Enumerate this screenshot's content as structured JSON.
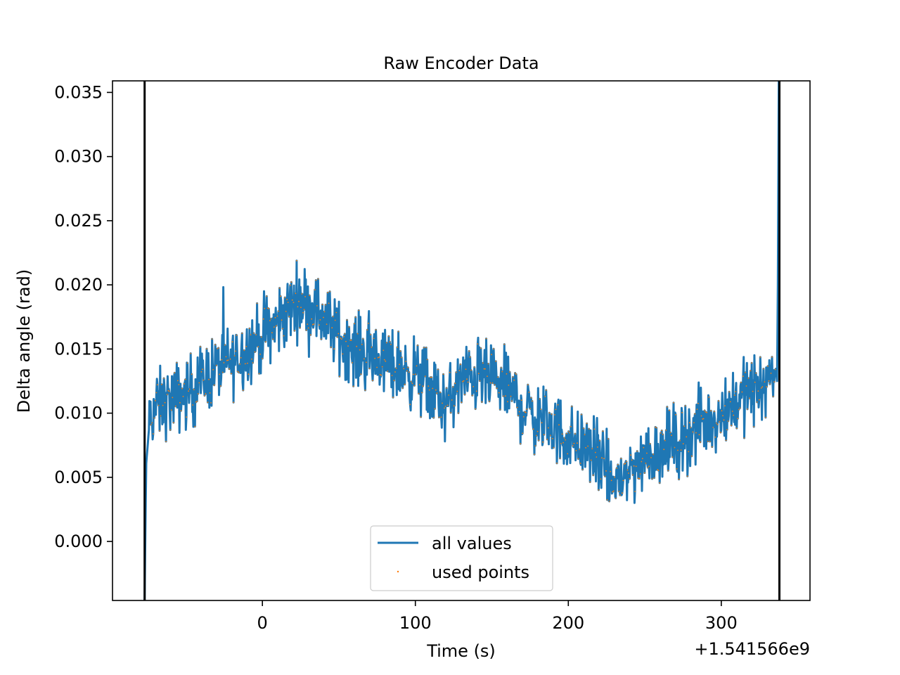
{
  "chart_data": {
    "type": "line",
    "title": "Raw Encoder Data",
    "xlabel": "Time (s)",
    "ylabel": "Delta angle (rad)",
    "x_offset_label": "+1.541566e9",
    "xlim": [
      -98,
      358
    ],
    "ylim": [
      -0.0046,
      0.0359
    ],
    "xticks": [
      0,
      100,
      200,
      300
    ],
    "xtick_labels": [
      "0",
      "100",
      "200",
      "300"
    ],
    "yticks": [
      0.0,
      0.005,
      0.01,
      0.015,
      0.02,
      0.025,
      0.03,
      0.035
    ],
    "ytick_labels": [
      "0.000",
      "0.005",
      "0.010",
      "0.015",
      "0.020",
      "0.025",
      "0.030",
      "0.035"
    ],
    "vertical_lines_x": [
      -77,
      338
    ],
    "legend_position": "lower center",
    "colors": {
      "all_values": "#1f77b4",
      "used_points": "#ff7f0e",
      "vlines": "#000000"
    },
    "series": [
      {
        "name": "all values",
        "style": "line",
        "x": [
          -77,
          -76,
          -74,
          -70,
          -60,
          -50,
          -40,
          -30,
          -20,
          -10,
          0,
          10,
          20,
          25,
          30,
          40,
          50,
          60,
          70,
          80,
          90,
          100,
          110,
          120,
          130,
          140,
          150,
          160,
          170,
          180,
          190,
          200,
          210,
          220,
          228,
          235,
          245,
          255,
          265,
          275,
          285,
          295,
          305,
          315,
          325,
          336,
          337,
          338
        ],
        "y": [
          -0.0046,
          0.006,
          0.009,
          0.0105,
          0.011,
          0.0115,
          0.0125,
          0.0135,
          0.014,
          0.015,
          0.016,
          0.017,
          0.0185,
          0.019,
          0.0185,
          0.0175,
          0.016,
          0.015,
          0.0145,
          0.014,
          0.0135,
          0.013,
          0.012,
          0.0105,
          0.0125,
          0.013,
          0.0125,
          0.012,
          0.0105,
          0.0095,
          0.009,
          0.008,
          0.0075,
          0.0065,
          0.0045,
          0.005,
          0.006,
          0.007,
          0.0075,
          0.008,
          0.009,
          0.0095,
          0.0105,
          0.0115,
          0.012,
          0.0135,
          0.02,
          0.036
        ],
        "noise_amplitude": 0.0017
      },
      {
        "name": "used points",
        "style": "points",
        "note": "same samples as all values, plotted as small dots"
      }
    ]
  }
}
